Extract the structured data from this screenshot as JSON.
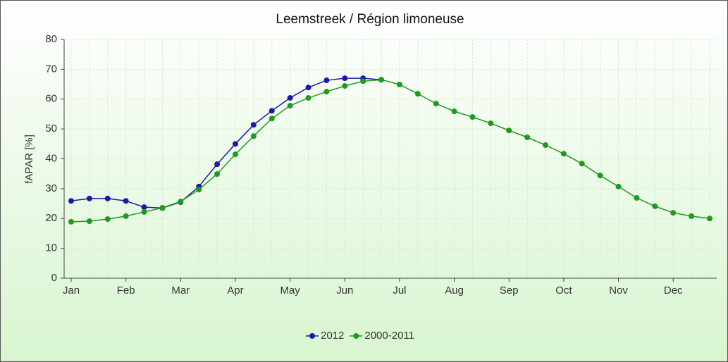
{
  "chart_data": {
    "type": "line",
    "title": "Leemstreek / Région limoneuse",
    "ylabel": "fAPAR [%]",
    "categories": [
      "Jan",
      null,
      null,
      "Feb",
      null,
      null,
      "Mar",
      null,
      null,
      "Apr",
      null,
      null,
      "May",
      null,
      null,
      "Jun",
      null,
      null,
      "Jul",
      null,
      null,
      "Aug",
      null,
      null,
      "Sep",
      null,
      null,
      "Oct",
      null,
      null,
      "Nov",
      null,
      null,
      "Dec",
      null,
      null
    ],
    "series": [
      {
        "name": "2012",
        "color": "#1a1aa8",
        "values": [
          25.9,
          26.7,
          26.7,
          25.9,
          23.8,
          23.5,
          25.5,
          30.7,
          38.2,
          45,
          51.4,
          56.1,
          60.4,
          63.9,
          66.3,
          67,
          67,
          66.5,
          null,
          null,
          null,
          null,
          null,
          null,
          null,
          null,
          null,
          null,
          null,
          null,
          null,
          null,
          null,
          null,
          null,
          null
        ]
      },
      {
        "name": "2000-2011",
        "color": "#1e9a1e",
        "values": [
          18.9,
          19.1,
          19.8,
          20.8,
          22.2,
          23.6,
          25.7,
          29.7,
          34.9,
          41.5,
          47.6,
          53.5,
          57.8,
          60.4,
          62.5,
          64.4,
          66,
          66.5,
          64.9,
          61.8,
          58.5,
          55.9,
          54,
          51.9,
          49.5,
          47.2,
          44.6,
          41.7,
          38.4,
          34.4,
          30.7,
          26.9,
          24.1,
          21.9,
          20.8,
          20
        ]
      }
    ],
    "ylim": [
      0,
      80
    ],
    "yticks": [
      0,
      10,
      20,
      30,
      40,
      50,
      60,
      70,
      80
    ],
    "grid": true,
    "legend": "bottom"
  }
}
